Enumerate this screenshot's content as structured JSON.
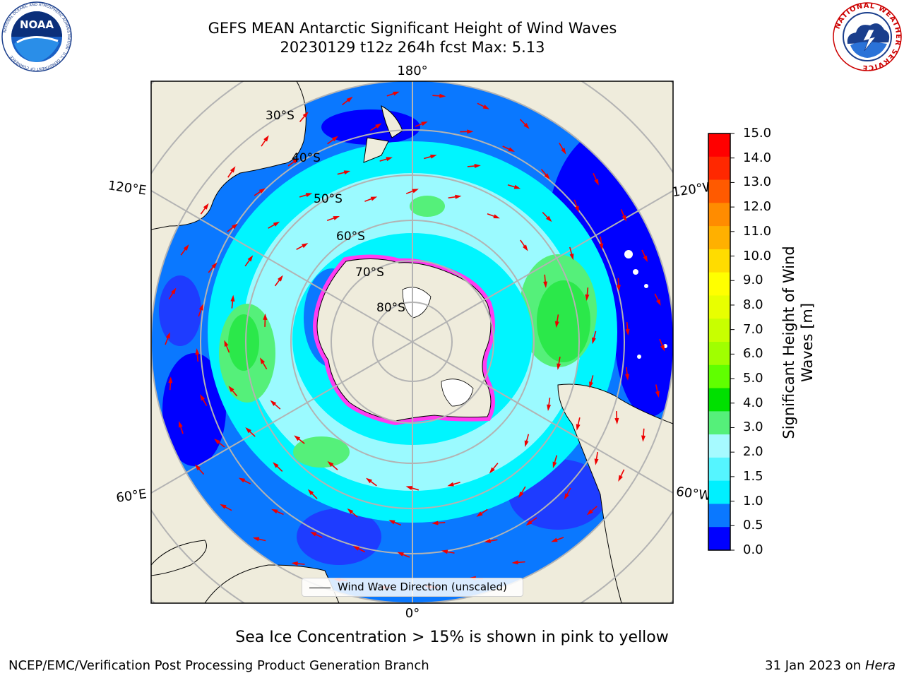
{
  "title": {
    "line1": "GEFS MEAN Antarctic Significant Height of Wind Waves",
    "line2": "20230129 t12z 264h fcst   Max: 5.13"
  },
  "logos": {
    "left": "NOAA",
    "left_ring": "NATIONAL OCEANIC AND ATMOSPHERIC ADMINISTRATION · U.S. DEPARTMENT OF COMMERCE",
    "right_ring": "NATIONAL WEATHER SERVICE"
  },
  "map": {
    "projection": "south-polar-stereographic",
    "longitude_labels": {
      "top": "180°",
      "bottom": "0°",
      "upper_left": "120°E",
      "lower_left": "60°E",
      "upper_right": "120°W",
      "lower_right": "60°W"
    },
    "latitude_labels": [
      "30°S",
      "40°S",
      "50°S",
      "60°S",
      "70°S",
      "80°S"
    ],
    "colors": {
      "land": "#efecdc",
      "deep_blue": "#0000ff",
      "blue": "#0a78ff",
      "cyan": "#00f5ff",
      "light_cyan": "#9bfaff",
      "green": "#2be84a",
      "light_green": "#55f07a",
      "sea_ice_pink": "#ff3cf0",
      "sea_ice_yellow": "#ffd23c",
      "arrow": "#ee0000",
      "grid": "#b3b3b3"
    }
  },
  "legend": {
    "label": "Wind Wave Direction (unscaled)"
  },
  "colorbar": {
    "label": "Significant Height of Wind Waves [m]",
    "label_line1": "Significant Height of Wind",
    "label_line2": "Waves [m]",
    "ticks": [
      "15.0",
      "14.0",
      "13.0",
      "12.0",
      "11.0",
      "10.0",
      "9.0",
      "8.0",
      "7.0",
      "6.0",
      "5.0",
      "4.0",
      "3.0",
      "2.0",
      "1.5",
      "1.0",
      "0.5",
      "0.0"
    ],
    "colors_top_to_bottom": [
      "#ff0000",
      "#ff2800",
      "#ff5a00",
      "#ff8c00",
      "#ffb000",
      "#ffdc00",
      "#ffff00",
      "#e8ff00",
      "#c8ff00",
      "#a0ff00",
      "#60ff00",
      "#00e000",
      "#55f07a",
      "#a6faff",
      "#55f5ff",
      "#00f0ff",
      "#0a78ff",
      "#0000ff"
    ]
  },
  "footnote": "Sea Ice Concentration > 15% is shown in pink to yellow",
  "credit": {
    "left": "NCEP/EMC/Verification Post Processing Product Generation Branch",
    "right_prefix": "31 Jan 2023 on ",
    "right_machine": "Hera"
  }
}
